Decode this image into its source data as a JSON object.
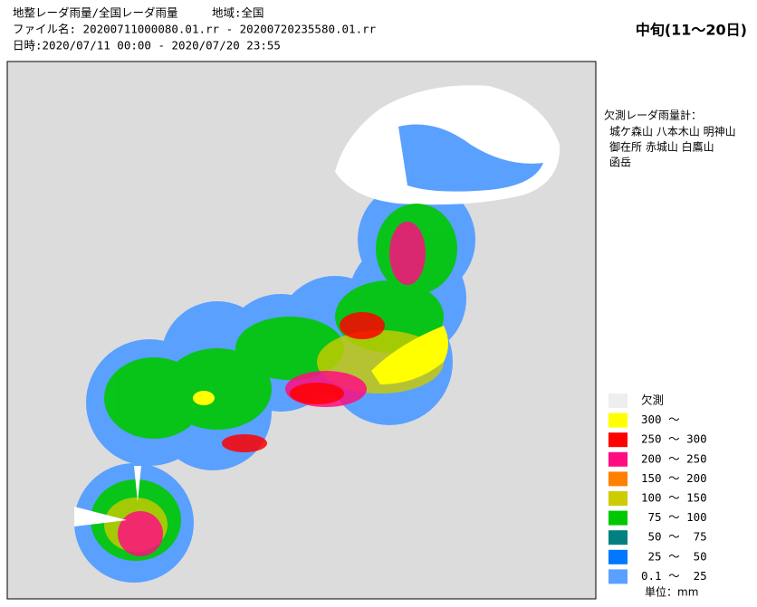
{
  "header": {
    "lines": [
      "地整レーダ雨量/全国レーダ雨量　　　地域:全国",
      "ファイル名: 20200711000080.01.rr - 20200720235580.01.rr",
      "日時:2020/07/11 00:00 - 2020/07/20 23:55"
    ]
  },
  "period": "中旬(11～20日)",
  "missing_radars": {
    "title": "欠測レーダ雨量計：",
    "lines": [
      "城ケ森山 八本木山 明神山",
      "御在所 赤城山 白鷹山",
      "函岳"
    ]
  },
  "legend": {
    "items": [
      {
        "label": "欠測",
        "color": "#eeeeee"
      },
      {
        "label": "300 ～",
        "color": "#ffff00"
      },
      {
        "label": "250 ～ 300",
        "color": "#ff0000"
      },
      {
        "label": "200 ～ 250",
        "color": "#ff0d80"
      },
      {
        "label": "150 ～ 200",
        "color": "#ff8000"
      },
      {
        "label": "100 ～ 150",
        "color": "#cccc00"
      },
      {
        "label": " 75 ～ 100",
        "color": "#00c800"
      },
      {
        "label": " 50 ～  75",
        "color": "#008080"
      },
      {
        "label": " 25 ～  50",
        "color": "#0078ff"
      },
      {
        "label": "0.1 ～  25",
        "color": "#5aa0ff"
      }
    ],
    "unit": "単位：mm"
  }
}
